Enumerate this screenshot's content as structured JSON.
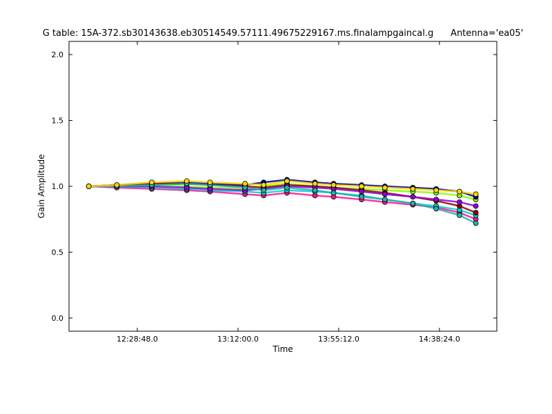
{
  "chart_data": {
    "type": "line",
    "title": "G table: 15A-372.sb30143638.eb30514549.57111.49675229167.ms.finalampgaincal.g      Antenna='ea05'",
    "x_label": "Time",
    "y_label": "Gain Amplitude",
    "x": [
      "12:08:00",
      "12:20:00",
      "12:35:00",
      "12:50:00",
      "13:00:00",
      "13:15:00",
      "13:23:00",
      "13:33:00",
      "13:45:00",
      "13:53:00",
      "14:05:00",
      "14:15:00",
      "14:27:00",
      "14:37:00",
      "14:47:00",
      "14:54:00"
    ],
    "series": [
      {
        "color": "#7fff00",
        "values": [
          1.0,
          1.0,
          1.01,
          1.0,
          0.99,
          0.98,
          1.0,
          1.02,
          1.0,
          0.99,
          0.98,
          0.97,
          0.96,
          0.95,
          0.93,
          0.9
        ]
      },
      {
        "color": "#00008b",
        "values": [
          1.0,
          1.01,
          1.02,
          1.03,
          1.02,
          1.01,
          1.03,
          1.05,
          1.03,
          1.02,
          1.01,
          1.0,
          0.99,
          0.98,
          0.96,
          0.92
        ]
      },
      {
        "color": "#ff1493",
        "values": [
          1.0,
          0.99,
          0.98,
          0.97,
          0.96,
          0.94,
          0.93,
          0.95,
          0.93,
          0.92,
          0.9,
          0.88,
          0.86,
          0.84,
          0.8,
          0.75
        ]
      },
      {
        "color": "#00ced1",
        "values": [
          1.0,
          1.0,
          0.99,
          0.98,
          0.97,
          0.96,
          0.95,
          0.97,
          0.96,
          0.95,
          0.93,
          0.9,
          0.87,
          0.85,
          0.82,
          0.78
        ]
      },
      {
        "color": "#8b0000",
        "values": [
          1.0,
          1.01,
          1.02,
          1.02,
          1.01,
          1.0,
          0.99,
          1.01,
          1.0,
          0.99,
          0.97,
          0.95,
          0.92,
          0.89,
          0.85,
          0.8
        ]
      },
      {
        "color": "#9400d3",
        "values": [
          1.0,
          1.0,
          1.0,
          0.99,
          0.98,
          0.97,
          0.98,
          1.0,
          0.99,
          0.98,
          0.96,
          0.94,
          0.92,
          0.9,
          0.88,
          0.85
        ]
      },
      {
        "color": "#20b2aa",
        "values": [
          1.0,
          1.0,
          1.01,
          1.02,
          1.01,
          0.99,
          0.97,
          0.99,
          0.97,
          0.95,
          0.92,
          0.9,
          0.87,
          0.83,
          0.78,
          0.72
        ]
      },
      {
        "color": "#ffd700",
        "values": [
          1.0,
          1.01,
          1.03,
          1.04,
          1.03,
          1.02,
          1.01,
          1.04,
          1.02,
          1.01,
          1.0,
          0.99,
          0.98,
          0.97,
          0.96,
          0.94
        ]
      }
    ],
    "xlim": [
      "11:59:30",
      "15:03:00"
    ],
    "xticks": [
      "12:28:48.0",
      "13:12:00.0",
      "13:55:12.0",
      "14:38:24.0"
    ],
    "ylim": [
      -0.1,
      2.1
    ],
    "yticks": [
      {
        "value": 0,
        "label": "0.0"
      },
      0.5,
      {
        "value": 1,
        "label": "1.0"
      },
      1.5,
      {
        "value": 2,
        "label": "2.0"
      }
    ]
  }
}
